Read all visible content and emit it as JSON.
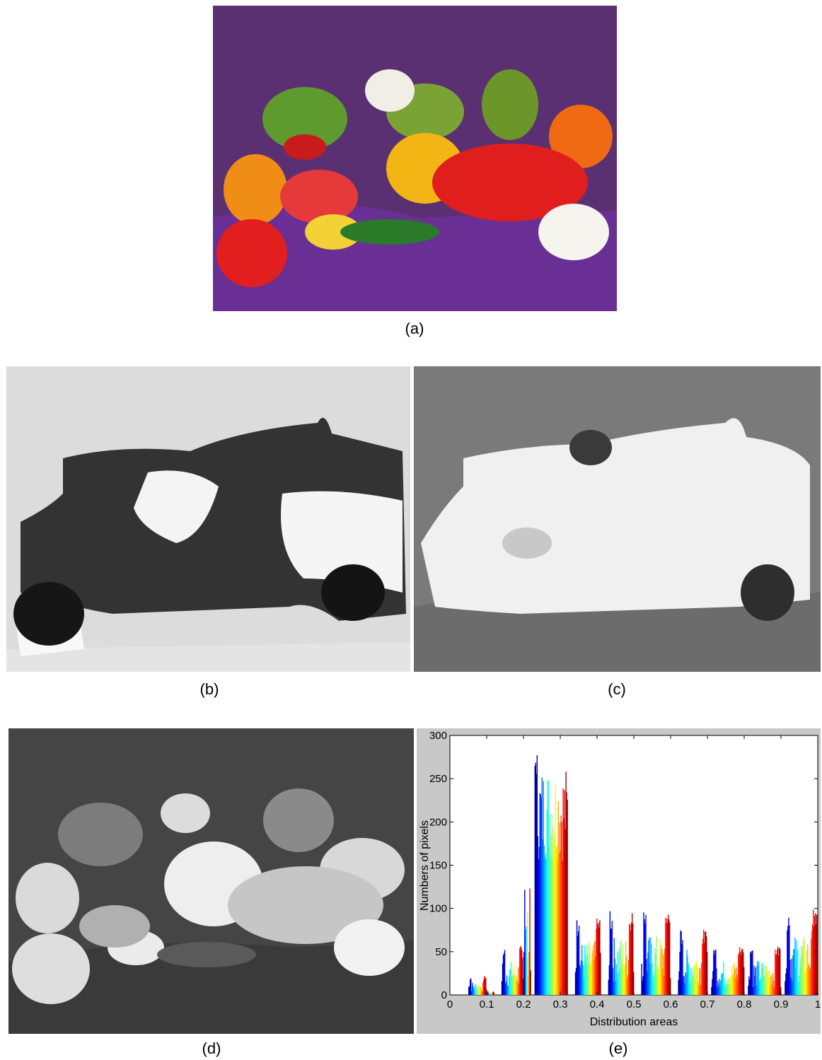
{
  "figure": {
    "captions": {
      "a": "(a)",
      "b": "(b)",
      "c": "(c)",
      "d": "(d)",
      "e": "(e)"
    },
    "panels": {
      "a": {
        "content": "color photograph of peppers and garlic on purple cloth",
        "dominant_colors": [
          "#5a2f70",
          "#e32222",
          "#f2c61b",
          "#6e9e2c",
          "#ee7a1a",
          "#f0eee8"
        ]
      },
      "b": {
        "content": "grayscale hue map of peppers image",
        "dominant_colors": [
          "#d9d9d9",
          "#2a2a2a",
          "#f7f7f7"
        ]
      },
      "c": {
        "content": "inverted grayscale saturation map of peppers image",
        "dominant_colors": [
          "#767676",
          "#f2f2f2",
          "#2d2d2d"
        ]
      },
      "d": {
        "content": "grayscale intensity image of peppers",
        "dominant_colors": [
          "#404040",
          "#aaaaaa",
          "#e6e6e6"
        ]
      }
    }
  },
  "chart_data": {
    "type": "bar",
    "xlabel": "Distribution areas",
    "ylabel": "Numbers of pixels",
    "xlim": [
      0,
      1
    ],
    "ylim": [
      0,
      300
    ],
    "xticks": [
      "0",
      "0.1",
      "0.2",
      "0.3",
      "0.4",
      "0.5",
      "0.6",
      "0.7",
      "0.8",
      "0.9",
      "1"
    ],
    "yticks": [
      "0",
      "50",
      "100",
      "150",
      "200",
      "250",
      "300"
    ],
    "grid": false,
    "colormap": "jet (blue to red repeating within each group)",
    "groups": [
      {
        "x_start": 0.05,
        "x_end": 0.1,
        "peak": 22
      },
      {
        "x_start": 0.1,
        "x_end": 0.12,
        "peak": 5
      },
      {
        "x_start": 0.14,
        "x_end": 0.2,
        "peak": 57
      },
      {
        "x_start": 0.2,
        "x_end": 0.22,
        "peak": 143
      },
      {
        "x_start": 0.23,
        "x_end": 0.32,
        "peak": 280
      },
      {
        "x_start": 0.34,
        "x_end": 0.41,
        "peak": 89
      },
      {
        "x_start": 0.43,
        "x_end": 0.5,
        "peak": 97
      },
      {
        "x_start": 0.52,
        "x_end": 0.6,
        "peak": 99
      },
      {
        "x_start": 0.62,
        "x_end": 0.7,
        "peak": 76
      },
      {
        "x_start": 0.71,
        "x_end": 0.8,
        "peak": 57
      },
      {
        "x_start": 0.81,
        "x_end": 0.9,
        "peak": 58
      },
      {
        "x_start": 0.91,
        "x_end": 1.0,
        "peak": 99
      }
    ]
  }
}
